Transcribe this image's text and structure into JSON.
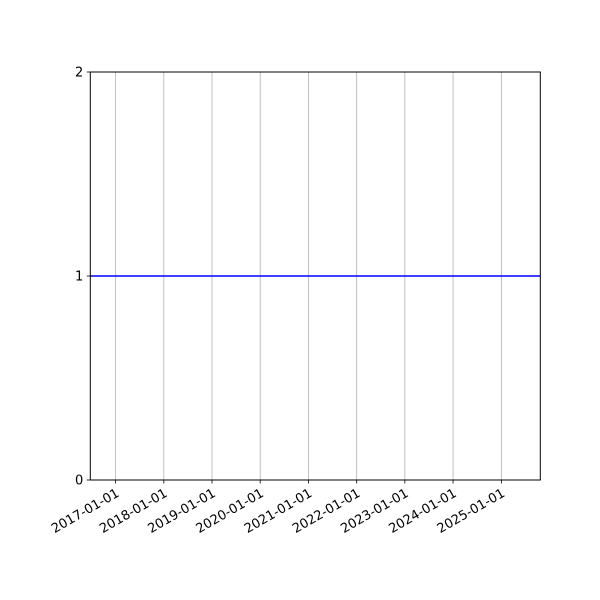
{
  "chart_data": {
    "type": "line",
    "title": "",
    "xlabel": "",
    "ylabel": "",
    "x_axis_type": "date",
    "xlim": [
      "2016-06-23",
      "2025-10-23"
    ],
    "ylim": [
      0,
      2
    ],
    "x_ticks": [
      "2017-01-01",
      "2018-01-01",
      "2019-01-01",
      "2020-01-01",
      "2021-01-01",
      "2022-01-01",
      "2023-01-01",
      "2024-01-01",
      "2025-01-01"
    ],
    "y_ticks": [
      0,
      1,
      2
    ],
    "y_tick_labels": [
      "0",
      "1",
      "2"
    ],
    "grid": {
      "x": true,
      "y": false
    },
    "series": [
      {
        "color": "#0000ff",
        "x": [
          "2016-06-23",
          "2025-10-23"
        ],
        "y": [
          1,
          1
        ]
      }
    ]
  }
}
